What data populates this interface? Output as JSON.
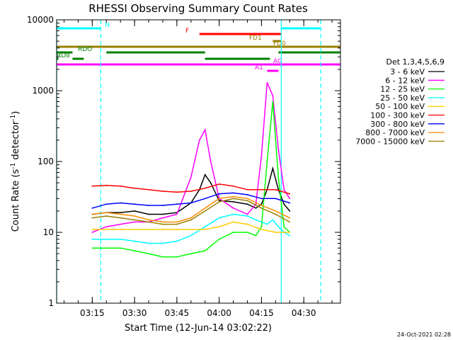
{
  "chart_data": {
    "type": "line",
    "title": "RHESSI Observing Summary Count Rates",
    "xlabel": "Start Time (12-Jun-14 03:02:22)",
    "ylabel": "Count Rate (s⁻¹ detector⁻¹)",
    "ylabel_main": "Count Rate (s",
    "ylabel_mid": " detector",
    "ylabel_end": ")",
    "ylabel_sup": "-1",
    "yscale": "log",
    "ylim": [
      1,
      10000
    ],
    "xlim": [
      "03:02:22",
      "04:43:00"
    ],
    "x_ticks": [
      "03:15",
      "03:30",
      "03:45",
      "04:00",
      "04:15",
      "04:30"
    ],
    "y_ticks": [
      "1",
      "10",
      "100",
      "1000",
      "10000"
    ],
    "legend_title": "Det 1,3,4,5,6,9",
    "legend_placement": "right",
    "series": [
      {
        "name": "3 - 6 keV",
        "color": "#000000",
        "x": [
          "03:15",
          "03:20",
          "03:25",
          "03:30",
          "03:35",
          "03:40",
          "03:45",
          "03:50",
          "03:53",
          "03:55",
          "03:57",
          "04:00",
          "04:05",
          "04:10",
          "04:13",
          "04:15",
          "04:17",
          "04:19",
          "04:21",
          "04:23",
          "04:25"
        ],
        "values": [
          18,
          19,
          19,
          20,
          18,
          18,
          19,
          26,
          40,
          65,
          50,
          28,
          27,
          25,
          22,
          25,
          40,
          80,
          40,
          25,
          20
        ]
      },
      {
        "name": "6 - 12 keV",
        "color": "#ff00ff",
        "x": [
          "03:15",
          "03:20",
          "03:25",
          "03:30",
          "03:35",
          "03:40",
          "03:45",
          "03:50",
          "03:53",
          "03:55",
          "03:57",
          "04:00",
          "04:05",
          "04:10",
          "04:13",
          "04:15",
          "04:17",
          "04:19",
          "04:21",
          "04:23",
          "04:25"
        ],
        "values": [
          10,
          12,
          13,
          14,
          14,
          16,
          18,
          60,
          200,
          280,
          100,
          30,
          22,
          18,
          25,
          120,
          1300,
          850,
          150,
          40,
          30
        ]
      },
      {
        "name": "12 - 25 keV",
        "color": "#00ff00",
        "x": [
          "03:15",
          "03:20",
          "03:25",
          "03:30",
          "03:35",
          "03:40",
          "03:45",
          "03:50",
          "03:55",
          "04:00",
          "04:05",
          "04:10",
          "04:13",
          "04:15",
          "04:17",
          "04:19",
          "04:21",
          "04:23",
          "04:25"
        ],
        "values": [
          6,
          6,
          6,
          5.5,
          5,
          4.5,
          4.5,
          5,
          5.5,
          8,
          10,
          10,
          9,
          12,
          100,
          700,
          60,
          12,
          10
        ]
      },
      {
        "name": "25 - 50 keV",
        "color": "#00ffff",
        "x": [
          "03:15",
          "03:20",
          "03:25",
          "03:30",
          "03:35",
          "03:40",
          "03:45",
          "03:50",
          "03:55",
          "04:00",
          "04:05",
          "04:10",
          "04:13",
          "04:15",
          "04:17",
          "04:19",
          "04:21",
          "04:23",
          "04:25"
        ],
        "values": [
          8,
          8,
          8,
          7.5,
          7,
          7,
          7.5,
          9,
          12,
          16,
          18,
          17,
          15,
          14,
          13,
          15,
          12,
          10,
          9
        ]
      },
      {
        "name": "50 - 100 keV",
        "color": "#ffcc00",
        "x": [
          "03:15",
          "03:20",
          "03:25",
          "03:30",
          "03:35",
          "03:40",
          "03:45",
          "03:50",
          "03:55",
          "04:00",
          "04:05",
          "04:10",
          "04:15",
          "04:20",
          "04:25"
        ],
        "values": [
          11,
          11,
          11,
          11,
          11,
          11,
          11,
          11,
          11,
          12,
          14,
          13,
          11,
          10,
          10
        ]
      },
      {
        "name": "100 - 300 keV",
        "color": "#ff0000",
        "x": [
          "03:15",
          "03:20",
          "03:25",
          "03:30",
          "03:35",
          "03:40",
          "03:45",
          "03:50",
          "03:55",
          "04:00",
          "04:05",
          "04:10",
          "04:15",
          "04:20",
          "04:25"
        ],
        "values": [
          45,
          46,
          45,
          42,
          40,
          38,
          37,
          38,
          42,
          48,
          45,
          40,
          40,
          40,
          35
        ]
      },
      {
        "name": "300 - 800 keV",
        "color": "#0000ff",
        "x": [
          "03:15",
          "03:20",
          "03:25",
          "03:30",
          "03:35",
          "03:40",
          "03:45",
          "03:50",
          "03:55",
          "04:00",
          "04:05",
          "04:10",
          "04:15",
          "04:20",
          "04:25"
        ],
        "values": [
          22,
          25,
          26,
          25,
          24,
          24,
          25,
          26,
          30,
          35,
          36,
          34,
          30,
          30,
          26
        ]
      },
      {
        "name": "800 - 7000 keV",
        "color": "#ff8c00",
        "x": [
          "03:15",
          "03:20",
          "03:25",
          "03:30",
          "03:35",
          "03:40",
          "03:45",
          "03:50",
          "03:55",
          "04:00",
          "04:05",
          "04:10",
          "04:15",
          "04:20",
          "04:25"
        ],
        "values": [
          18,
          19,
          18,
          17,
          15,
          14,
          14,
          16,
          22,
          30,
          32,
          30,
          24,
          20,
          16
        ]
      },
      {
        "name": "7000 - 15000 keV",
        "color": "#998000",
        "x": [
          "03:15",
          "03:20",
          "03:25",
          "03:30",
          "03:35",
          "03:40",
          "03:45",
          "03:50",
          "03:55",
          "04:00",
          "04:05",
          "04:10",
          "04:15",
          "04:20",
          "04:25"
        ],
        "values": [
          16,
          17,
          16,
          15,
          14,
          13,
          13,
          15,
          20,
          27,
          30,
          28,
          22,
          18,
          14
        ]
      }
    ],
    "flag_bars": [
      {
        "label": "N",
        "color": "#00ffff",
        "segments": [
          [
            "03:02:22",
            "03:18"
          ],
          [
            "04:22",
            "04:36"
          ]
        ]
      },
      {
        "label": "F",
        "color": "#ff0000",
        "segments": [
          [
            "03:53",
            "04:22"
          ]
        ]
      },
      {
        "label": "FD1",
        "color": "#998000",
        "segments": [
          [
            "04:19",
            "04:22"
          ]
        ]
      },
      {
        "label": "FD0",
        "color": "#998000",
        "segments": [
          [
            "03:02:22",
            "04:43"
          ]
        ]
      },
      {
        "label": "RDO",
        "color": "#008000",
        "segments": [
          [
            "03:02:22",
            "03:08"
          ],
          [
            "03:20",
            "03:55"
          ],
          [
            "04:21",
            "04:43"
          ]
        ]
      },
      {
        "label": "RD8",
        "color": "#008000",
        "segments": [
          [
            "03:02:22",
            "03:03"
          ],
          [
            "03:08",
            "03:12"
          ],
          [
            "03:55",
            "04:18"
          ]
        ]
      },
      {
        "label": "AG",
        "color": "#ff00ff",
        "segments": [
          [
            "03:02:22",
            "04:43"
          ]
        ]
      },
      {
        "label": "A1",
        "color": "#ff00ff",
        "segments": [
          [
            "04:17",
            "04:21"
          ]
        ]
      }
    ],
    "vertical_lines": [
      {
        "x": "03:02:22",
        "color": "#00ffff",
        "style": "solid"
      },
      {
        "x": "03:18",
        "color": "#00ffff",
        "style": "dashed"
      },
      {
        "x": "04:22",
        "color": "#00ffff",
        "style": "solid"
      },
      {
        "x": "04:36",
        "color": "#00ffff",
        "style": "dashed"
      }
    ]
  },
  "footer_timestamp": "24-Oct-2021 02:28"
}
